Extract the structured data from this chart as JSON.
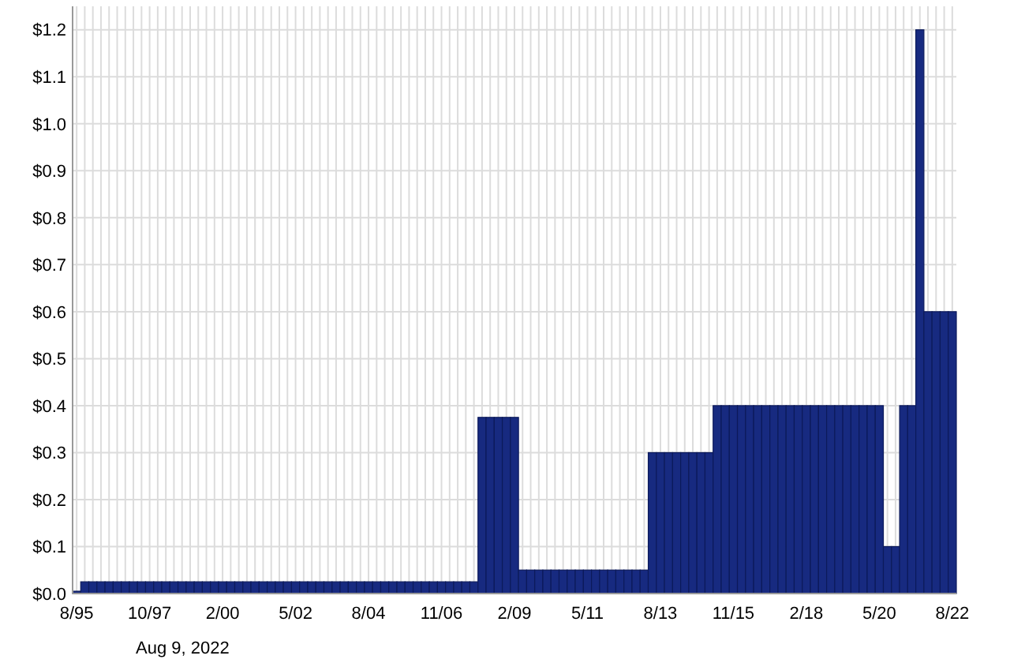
{
  "chart_data": {
    "type": "bar",
    "color": "#172a80",
    "grid": true,
    "categories": [
      "8/95",
      null,
      null,
      null,
      null,
      null,
      null,
      null,
      null,
      "10/97",
      null,
      null,
      null,
      null,
      null,
      null,
      null,
      null,
      "2/00",
      null,
      null,
      null,
      null,
      null,
      null,
      null,
      null,
      "5/02",
      null,
      null,
      null,
      null,
      null,
      null,
      null,
      null,
      "8/04",
      null,
      null,
      null,
      null,
      null,
      null,
      null,
      null,
      "11/06",
      null,
      null,
      null,
      null,
      null,
      null,
      null,
      null,
      "2/09",
      null,
      null,
      null,
      null,
      null,
      null,
      null,
      null,
      "5/11",
      null,
      null,
      null,
      null,
      null,
      null,
      null,
      null,
      "8/13",
      null,
      null,
      null,
      null,
      null,
      null,
      null,
      null,
      "11/15",
      null,
      null,
      null,
      null,
      null,
      null,
      null,
      null,
      "2/18",
      null,
      null,
      null,
      null,
      null,
      null,
      null,
      null,
      "5/20",
      null,
      null,
      null,
      null,
      null,
      null,
      null,
      null,
      "8/22"
    ],
    "values": [
      0.005,
      0.025,
      0.025,
      0.025,
      0.025,
      0.025,
      0.025,
      0.025,
      0.025,
      0.025,
      0.025,
      0.025,
      0.025,
      0.025,
      0.025,
      0.025,
      0.025,
      0.025,
      0.025,
      0.025,
      0.025,
      0.025,
      0.025,
      0.025,
      0.025,
      0.025,
      0.025,
      0.025,
      0.025,
      0.025,
      0.025,
      0.025,
      0.025,
      0.025,
      0.025,
      0.025,
      0.025,
      0.025,
      0.025,
      0.025,
      0.025,
      0.025,
      0.025,
      0.025,
      0.025,
      0.025,
      0.025,
      0.025,
      0.025,
      0.025,
      0.375,
      0.375,
      0.375,
      0.375,
      0.375,
      0.05,
      0.05,
      0.05,
      0.05,
      0.05,
      0.05,
      0.05,
      0.05,
      0.05,
      0.05,
      0.05,
      0.05,
      0.05,
      0.05,
      0.05,
      0.05,
      0.3,
      0.3,
      0.3,
      0.3,
      0.3,
      0.3,
      0.3,
      0.3,
      0.4,
      0.4,
      0.4,
      0.4,
      0.4,
      0.4,
      0.4,
      0.4,
      0.4,
      0.4,
      0.4,
      0.4,
      0.4,
      0.4,
      0.4,
      0.4,
      0.4,
      0.4,
      0.4,
      0.4,
      0.4,
      0.1,
      0.1,
      0.4,
      0.4,
      1.2,
      0.6,
      0.6,
      0.6,
      0.6
    ],
    "ylim": [
      0,
      1.25
    ],
    "yticks": [
      {
        "value": 0,
        "label": "$0.0"
      },
      {
        "value": 0.1,
        "label": "$0.1"
      },
      {
        "value": 0.2,
        "label": "$0.2"
      },
      {
        "value": 0.3,
        "label": "$0.3"
      },
      {
        "value": 0.4,
        "label": "$0.4"
      },
      {
        "value": 0.5,
        "label": "$0.5"
      },
      {
        "value": 0.6,
        "label": "$0.6"
      },
      {
        "value": 0.7,
        "label": "$0.7"
      },
      {
        "value": 0.8,
        "label": "$0.8"
      },
      {
        "value": 0.9,
        "label": "$0.9"
      },
      {
        "value": 1,
        "label": "$1.0"
      },
      {
        "value": 1.1,
        "label": "$1.1"
      },
      {
        "value": 1.2,
        "label": "$1.2"
      }
    ],
    "annotations": [
      "Aug 9, 2022"
    ]
  }
}
